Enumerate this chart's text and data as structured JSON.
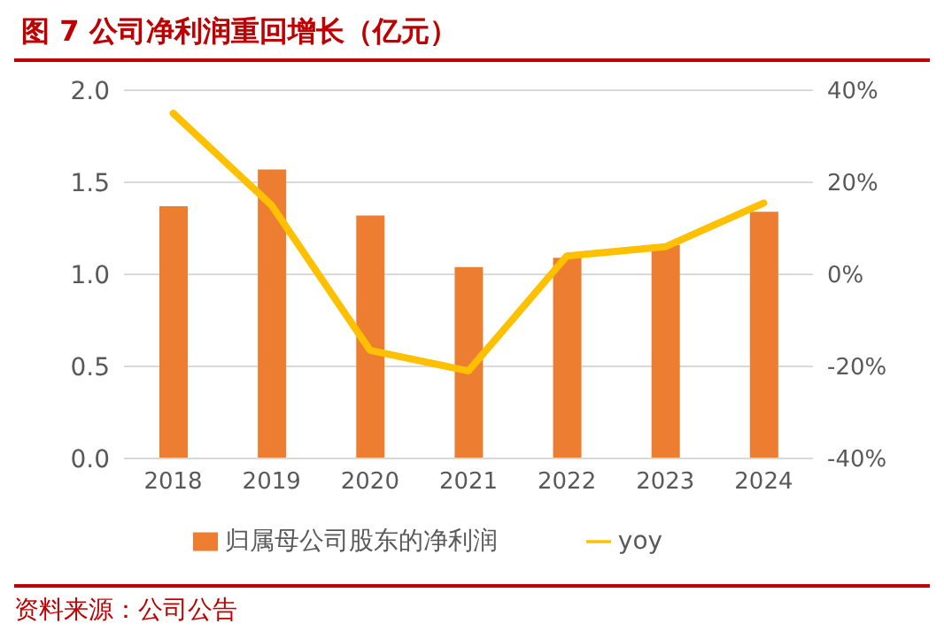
{
  "chart_data": {
    "type": "bar",
    "title": "图 7  公司净利润重回增长（亿元）",
    "categories": [
      "2018",
      "2019",
      "2020",
      "2021",
      "2022",
      "2023",
      "2024"
    ],
    "series": [
      {
        "name": "归属母公司股东的净利润",
        "color": "#ed7d31",
        "values": [
          1.37,
          1.57,
          1.32,
          1.04,
          1.09,
          1.16,
          1.34
        ]
      },
      {
        "name": "yoy",
        "type": "line",
        "axis": "y2",
        "color": "#ffc000",
        "values": [
          35,
          15,
          -16.5,
          -21,
          4,
          6,
          15.5
        ]
      }
    ],
    "ylim": [
      0,
      2
    ],
    "yticks": [
      {
        "value": 0,
        "label": "0.0"
      },
      {
        "value": 0.5,
        "label": "0.5"
      },
      {
        "value": 1,
        "label": "1.0"
      },
      {
        "value": 1.5,
        "label": "1.5"
      },
      {
        "value": 2,
        "label": "2.0"
      }
    ],
    "y2lim": [
      -40,
      40
    ],
    "y2ticks": [
      {
        "value": -40,
        "label": "-40%"
      },
      {
        "value": -20,
        "label": "-20%"
      },
      {
        "value": 0,
        "label": "0%"
      },
      {
        "value": 20,
        "label": "20%"
      },
      {
        "value": 40,
        "label": "40%"
      }
    ],
    "grid": "y",
    "legend": "bottom",
    "marker": "none",
    "annotations": [
      "资料来源：公司公告"
    ]
  }
}
